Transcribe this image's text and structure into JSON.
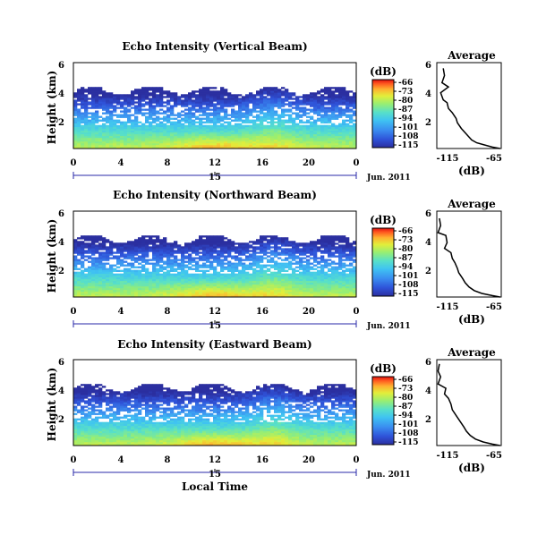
{
  "figure": {
    "xlabel": "Local Time",
    "date_label": "Jun. 2011",
    "colorbar_unit": "(dB)",
    "colorbar_ticks": [
      -66,
      -73,
      -80,
      -87,
      -94,
      -101,
      -108,
      -115
    ],
    "colormap": [
      "#2b2fa0",
      "#2f52d8",
      "#3a8ef0",
      "#3fc3f2",
      "#58e0c8",
      "#96ee74",
      "#e2ee3a",
      "#ffb030",
      "#ff5a20",
      "#e01010"
    ]
  },
  "chart_data": [
    {
      "type": "heatmap",
      "title": "Echo Intensity (Vertical Beam)",
      "ylabel": "Height (km)",
      "x_ticks": [
        "0",
        "4",
        "8",
        "12",
        "16",
        "20",
        "0"
      ],
      "x_range": [
        0,
        24
      ],
      "day_marker": "15",
      "y_ticks": [
        "6",
        "4",
        "2"
      ],
      "y_range": [
        0,
        6
      ],
      "z_range": [
        -115,
        -66
      ],
      "z_unit": "dB",
      "echo_top_km": 4.0
    },
    {
      "type": "heatmap",
      "title": "Echo Intensity (Northward Beam)",
      "ylabel": "Height (km)",
      "x_ticks": [
        "0",
        "4",
        "8",
        "12",
        "16",
        "20",
        "0"
      ],
      "x_range": [
        0,
        24
      ],
      "day_marker": "15",
      "y_ticks": [
        "6",
        "4",
        "2"
      ],
      "y_range": [
        0,
        6
      ],
      "z_range": [
        -115,
        -66
      ],
      "z_unit": "dB",
      "echo_top_km": 4.0
    },
    {
      "type": "heatmap",
      "title": "Echo Intensity (Eastward Beam)",
      "ylabel": "Height (km)",
      "x_ticks": [
        "0",
        "4",
        "8",
        "12",
        "16",
        "20",
        "0"
      ],
      "x_range": [
        0,
        24
      ],
      "day_marker": "15",
      "y_ticks": [
        "6",
        "4",
        "2"
      ],
      "y_range": [
        0,
        6
      ],
      "z_range": [
        -115,
        -66
      ],
      "z_unit": "dB",
      "echo_top_km": 4.0
    },
    {
      "type": "line",
      "title": "Average",
      "xlabel": "(dB)",
      "x_ticks": [
        "-115",
        "-65"
      ],
      "xlim": [
        -115,
        -65
      ],
      "y_ticks": [
        "6",
        "4",
        "2"
      ],
      "ylim": [
        0,
        6
      ],
      "points": [
        [
          -110,
          5.6
        ],
        [
          -109,
          5.1
        ],
        [
          -111,
          4.6
        ],
        [
          -106,
          4.3
        ],
        [
          -112,
          3.9
        ],
        [
          -110,
          3.4
        ],
        [
          -107,
          3.2
        ],
        [
          -106,
          2.8
        ],
        [
          -103,
          2.5
        ],
        [
          -100,
          2.1
        ],
        [
          -99,
          1.8
        ],
        [
          -96,
          1.4
        ],
        [
          -93,
          1.1
        ],
        [
          -91,
          0.9
        ],
        [
          -88,
          0.6
        ],
        [
          -84,
          0.4
        ],
        [
          -78,
          0.25
        ],
        [
          -72,
          0.1
        ],
        [
          -66,
          0.0
        ]
      ]
    },
    {
      "type": "line",
      "title": "Average",
      "xlabel": "(dB)",
      "x_ticks": [
        "-115",
        "-65"
      ],
      "xlim": [
        -115,
        -65
      ],
      "y_ticks": [
        "6",
        "4",
        "2"
      ],
      "ylim": [
        0,
        6
      ],
      "points": [
        [
          -113,
          5.5
        ],
        [
          -112,
          5.0
        ],
        [
          -114,
          4.5
        ],
        [
          -108,
          4.3
        ],
        [
          -107,
          3.8
        ],
        [
          -109,
          3.4
        ],
        [
          -104,
          3.1
        ],
        [
          -103,
          2.7
        ],
        [
          -101,
          2.4
        ],
        [
          -99,
          2.0
        ],
        [
          -98,
          1.7
        ],
        [
          -95,
          1.3
        ],
        [
          -93,
          1.0
        ],
        [
          -90,
          0.7
        ],
        [
          -86,
          0.45
        ],
        [
          -80,
          0.25
        ],
        [
          -72,
          0.1
        ],
        [
          -66,
          0.0
        ]
      ]
    },
    {
      "type": "line",
      "title": "Average",
      "xlabel": "(dB)",
      "x_ticks": [
        "-115",
        "-65"
      ],
      "xlim": [
        -115,
        -65
      ],
      "y_ticks": [
        "6",
        "4",
        "2"
      ],
      "ylim": [
        0,
        6
      ],
      "points": [
        [
          -113,
          5.7
        ],
        [
          -114,
          5.2
        ],
        [
          -112,
          4.8
        ],
        [
          -114,
          4.3
        ],
        [
          -108,
          4.0
        ],
        [
          -109,
          3.6
        ],
        [
          -106,
          3.3
        ],
        [
          -104,
          2.9
        ],
        [
          -103,
          2.5
        ],
        [
          -100,
          2.1
        ],
        [
          -97,
          1.7
        ],
        [
          -94,
          1.3
        ],
        [
          -92,
          1.0
        ],
        [
          -89,
          0.7
        ],
        [
          -85,
          0.45
        ],
        [
          -79,
          0.25
        ],
        [
          -72,
          0.1
        ],
        [
          -66,
          0.0
        ]
      ]
    }
  ]
}
